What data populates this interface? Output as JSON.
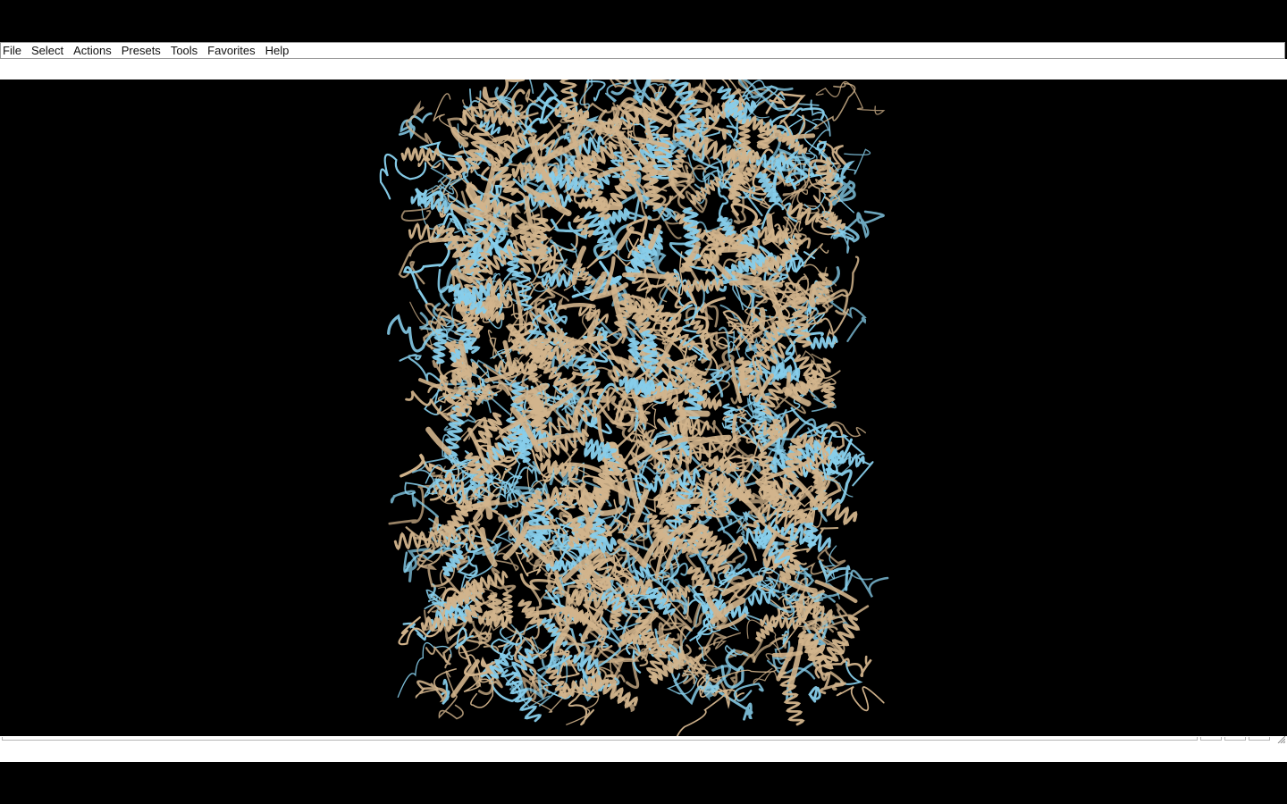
{
  "menubar": {
    "items": [
      {
        "label": "File"
      },
      {
        "label": "Select"
      },
      {
        "label": "Actions"
      },
      {
        "label": "Presets"
      },
      {
        "label": "Tools"
      },
      {
        "label": "Favorites"
      },
      {
        "label": "Help"
      }
    ]
  },
  "viewer": {
    "background": "#000000",
    "ribbon_colors": {
      "primary": "#d2b48c",
      "secondary": "#87ceeb"
    }
  },
  "statusbar": {
    "message": ""
  }
}
